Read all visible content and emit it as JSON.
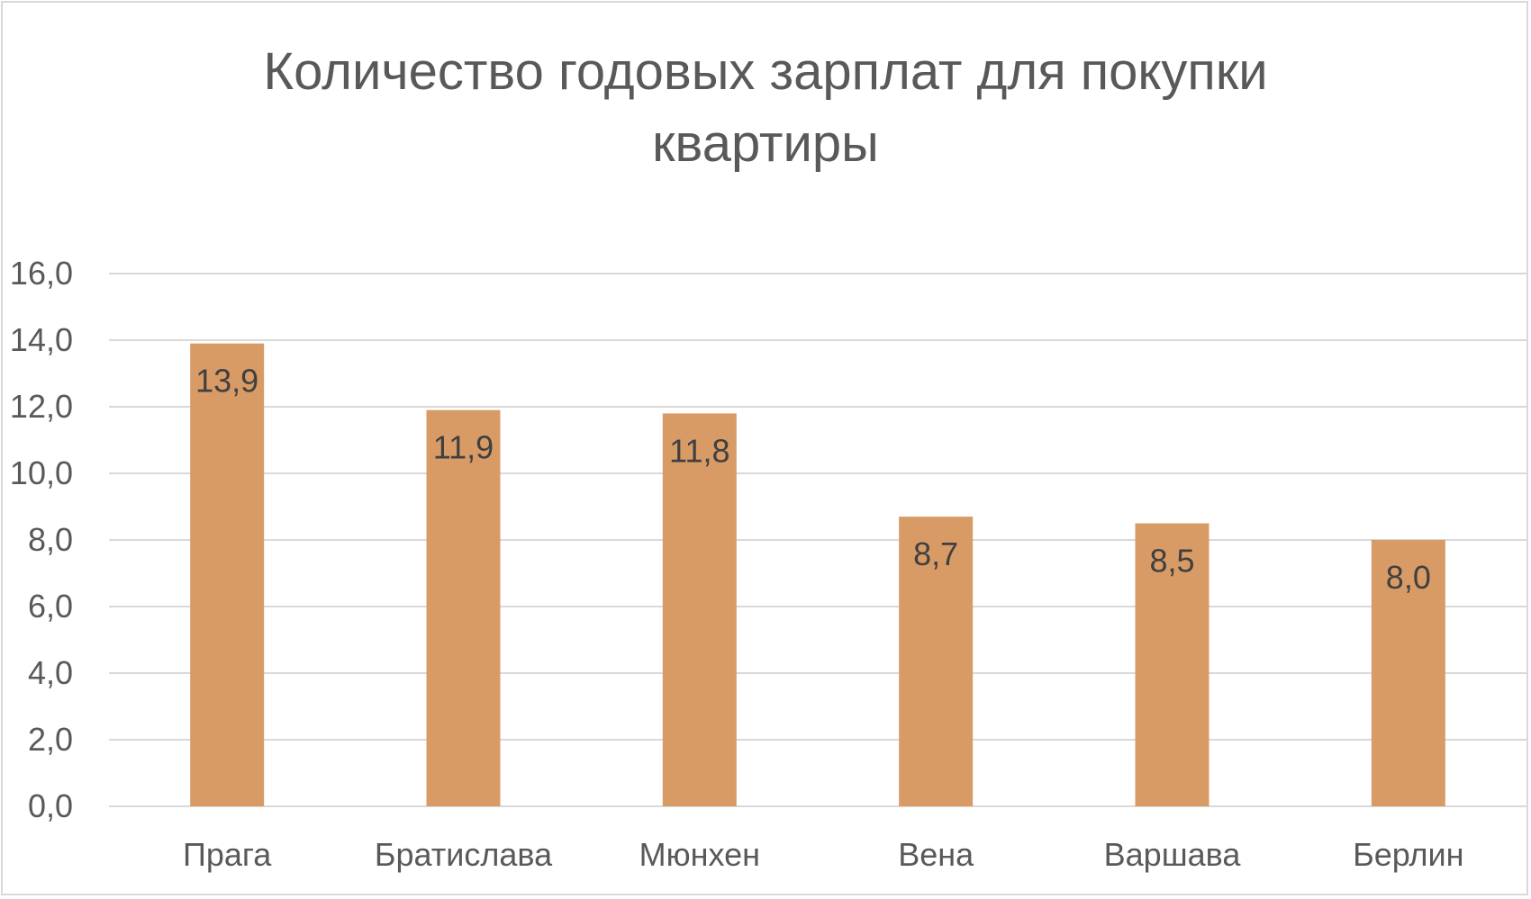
{
  "chart_data": {
    "type": "bar",
    "title_lines": [
      "Количество годовых зарплат для покупки",
      "квартиры"
    ],
    "categories": [
      "Прага",
      "Братислава",
      "Мюнхен",
      "Вена",
      "Варшава",
      "Берлин"
    ],
    "values": [
      13.9,
      11.9,
      11.8,
      8.7,
      8.5,
      8.0
    ],
    "data_labels": [
      "13,9",
      "11,9",
      "11,8",
      "8,7",
      "8,5",
      "8,0"
    ],
    "ylim": [
      0,
      16
    ],
    "yticks": [
      0,
      2,
      4,
      6,
      8,
      10,
      12,
      14,
      16
    ],
    "ytick_labels": [
      "0,0",
      "2,0",
      "4,0",
      "6,0",
      "8,0",
      "10,0",
      "12,0",
      "14,0",
      "16,0"
    ],
    "grid": true,
    "legend": "none",
    "colors": {
      "bar": "#d89b66",
      "grid": "#d9d9d9",
      "text": "#595959"
    }
  }
}
